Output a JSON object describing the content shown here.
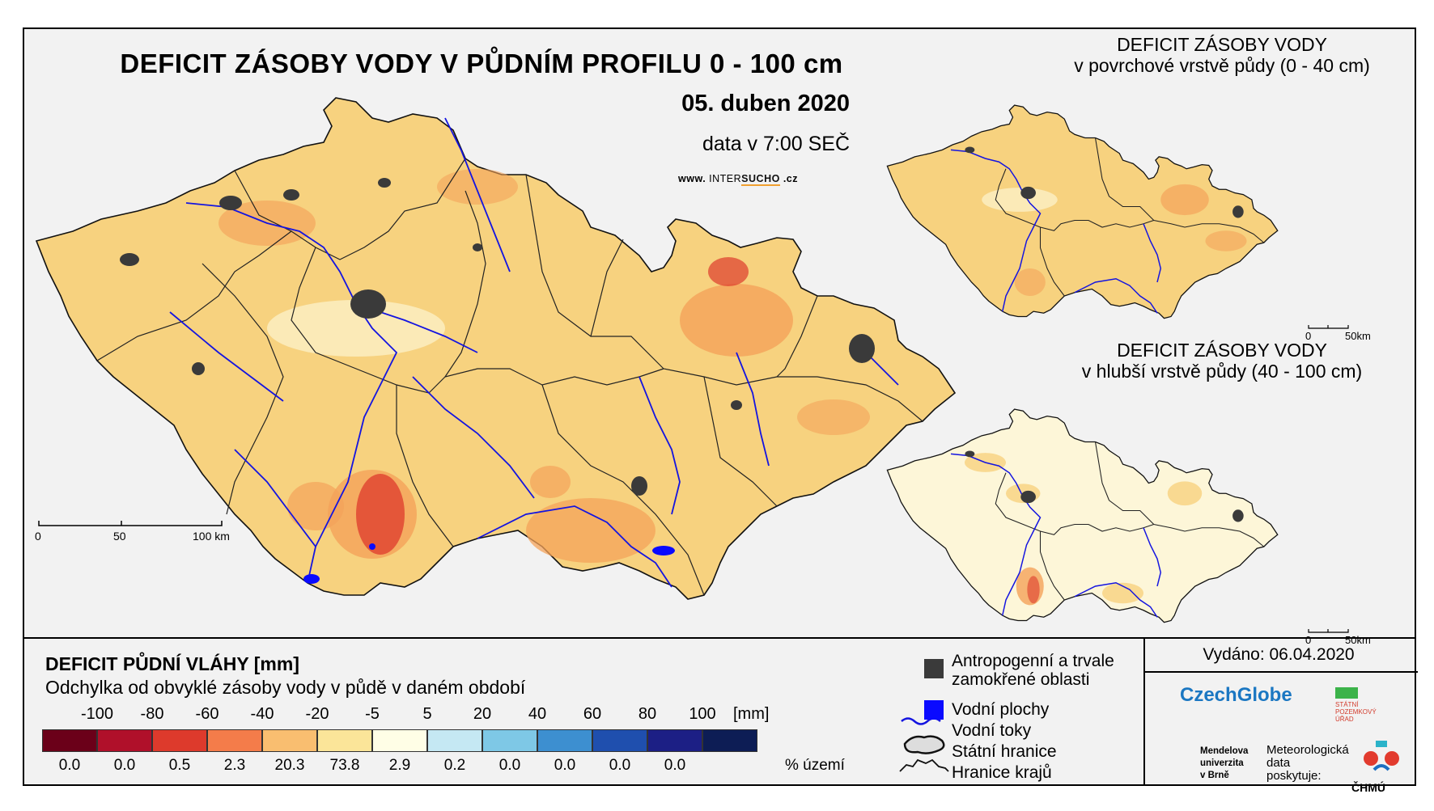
{
  "main": {
    "title": "DEFICIT ZÁSOBY VODY V PŮDNÍM PROFILU 0 - 100 cm",
    "date": "05. duben 2020",
    "time": "data v 7:00 SEČ",
    "web_prefix": "www.",
    "web_a": "INTER",
    "web_b": "SUCHO",
    "web_suffix": ".cz",
    "scalebar": [
      "0",
      "50",
      "100 km"
    ]
  },
  "inset_top": {
    "title_line1": "DEFICIT ZÁSOBY VODY",
    "title_line2": "v povrchové vrstvě půdy (0 - 40 cm)",
    "scalebar": [
      "0",
      "50km"
    ]
  },
  "inset_bottom": {
    "title_line1": "DEFICIT ZÁSOBY VODY",
    "title_line2": "v hlubší vrstvě půdy (40 - 100 cm)",
    "scalebar": [
      "0",
      "50km"
    ]
  },
  "legend": {
    "title": "DEFICIT PŮDNÍ VLÁHY [mm]",
    "subtitle": "Odchylka od obvyklé zásoby vody v půdě v daném období",
    "breaks": [
      "-100",
      "-80",
      "-60",
      "-40",
      "-20",
      "-5",
      "5",
      "20",
      "40",
      "60",
      "80",
      "100"
    ],
    "unit": "[mm]",
    "classes": [
      {
        "color": "#6b0019",
        "percent": "0.0"
      },
      {
        "color": "#b0102a",
        "percent": "0.0"
      },
      {
        "color": "#dd3a2c",
        "percent": "0.5"
      },
      {
        "color": "#f47c4a",
        "percent": "2.3"
      },
      {
        "color": "#f9be70",
        "percent": "20.3"
      },
      {
        "color": "#fbe599",
        "percent": "73.8"
      },
      {
        "color": "#fffee6",
        "percent": "2.9"
      },
      {
        "color": "#c5e8f3",
        "percent": "0.2"
      },
      {
        "color": "#7ec8e6",
        "percent": "0.0"
      },
      {
        "color": "#3d8fd0",
        "percent": "0.0"
      },
      {
        "color": "#1f4fae",
        "percent": "0.0"
      },
      {
        "color": "#1c1f85",
        "percent": "0.0"
      },
      {
        "color": "#0d1d55",
        "percent": ""
      }
    ],
    "percent_unit": "% území"
  },
  "symbols": {
    "anthropogenic_line1": "Antropogenní a trvale",
    "anthropogenic_line2": "zamokřené oblasti",
    "water_bodies": "Vodní plochy",
    "rivers": "Vodní toky",
    "state_border": "Státní hranice",
    "region_border": "Hranice krajů"
  },
  "issued": "Vydáno: 06.04.2020",
  "logos": {
    "czechglobe": "CzechGlobe",
    "spu_line1": "STÁTNÍ",
    "spu_line2": "POZEMKOVÝ",
    "spu_line3": "ÚŘAD",
    "mendel_line1": "Mendelova",
    "mendel_line2": "univerzita",
    "mendel_line3": "v Brně",
    "meteo_line1": "Meteorologická",
    "meteo_line2": "data",
    "meteo_line3": "poskytuje:",
    "chmu": "ČHMÚ"
  },
  "colors": {
    "map_fill": "#f7d27f",
    "map_fill_inset_bottom": "#fdf6d8",
    "hotspot_orange": "#f4a35a",
    "hotspot_red": "#dd3a2c",
    "river": "#1414e0",
    "urban": "#3a3a3a"
  }
}
